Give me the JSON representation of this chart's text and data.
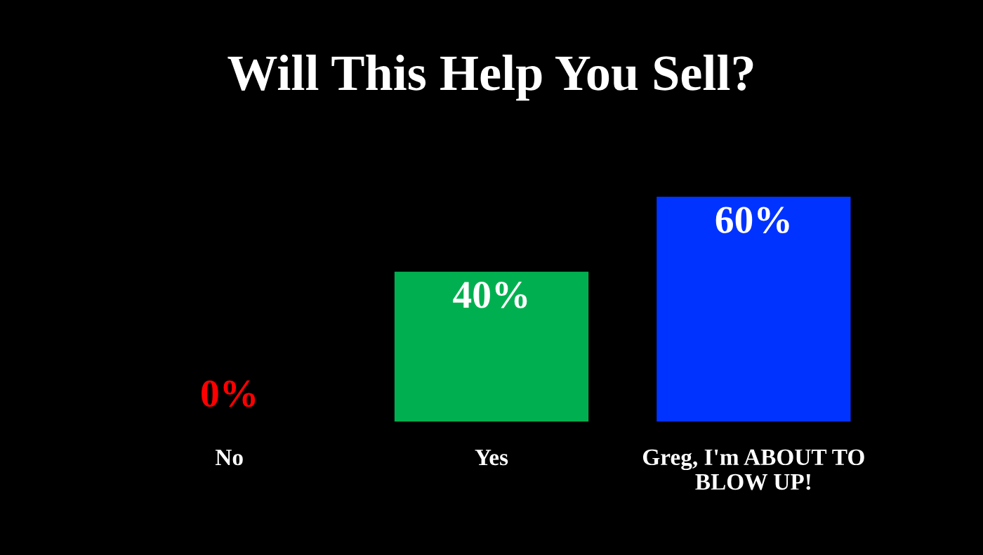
{
  "chart_data": {
    "type": "bar",
    "title": "Will This Help You Sell?",
    "categories": [
      "No",
      "Yes",
      "Greg, I'm ABOUT TO\nBLOW UP!"
    ],
    "values": [
      0,
      40,
      60
    ],
    "colors": [
      "#ff0000",
      "#00b050",
      "#0033ff"
    ],
    "value_labels": [
      "0%",
      "40%",
      "60%"
    ],
    "grid": false,
    "legend": false
  }
}
